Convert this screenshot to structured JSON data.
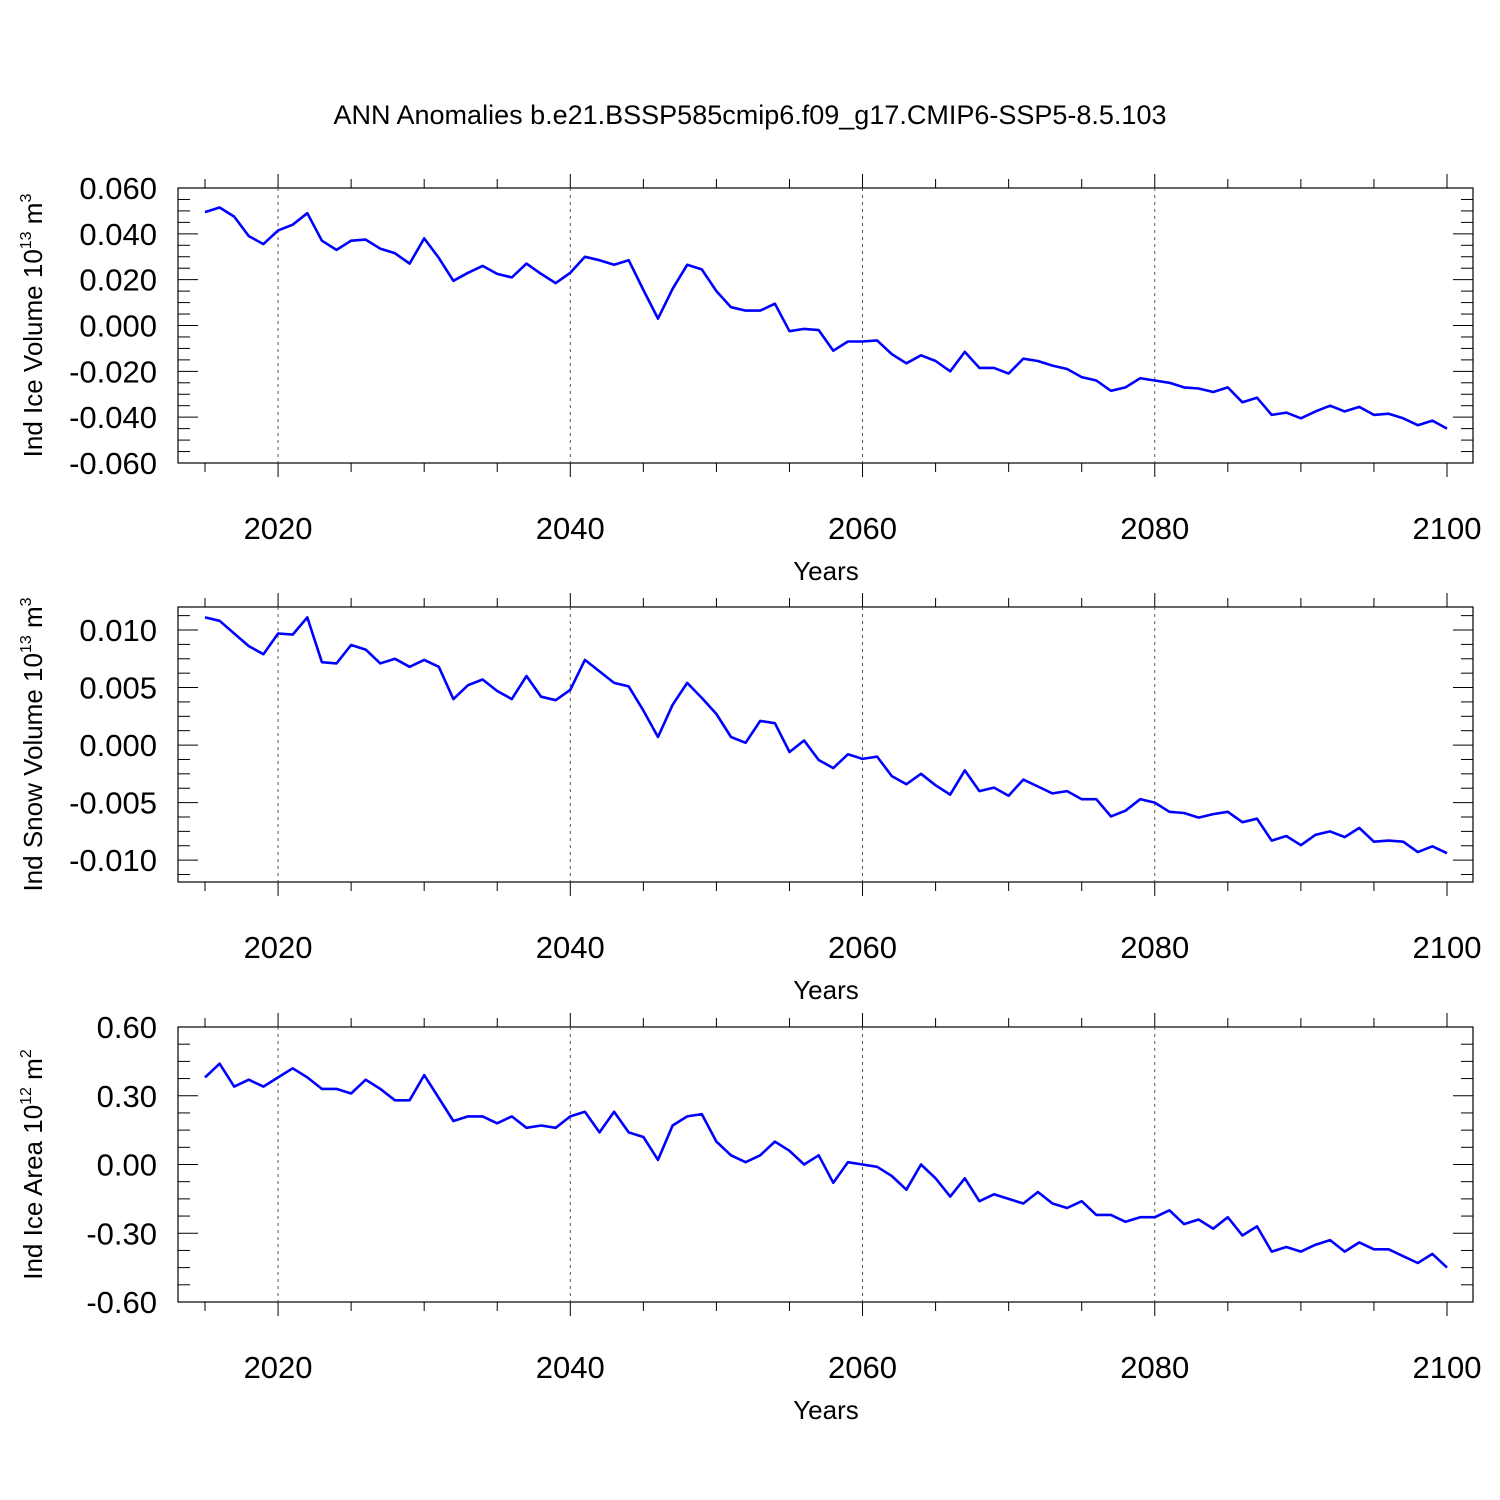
{
  "title": "ANN Anomalies b.e21.BSSP585cmip6.f09_g17.CMIP6-SSP5-8.5.103",
  "line_color": "#0000ff",
  "chart_data": [
    {
      "type": "line",
      "ylabel": "Ind Ice Volume 10",
      "ylabel_exp": "13",
      "ylabel_unit": " m",
      "ylabel_unit_exp": "3",
      "xlabel": "Years",
      "xlim": [
        2015,
        2100
      ],
      "ylim": [
        -0.06,
        0.06
      ],
      "xticks": [
        2020,
        2040,
        2060,
        2080,
        2100
      ],
      "yticks": [
        0.06,
        0.04,
        0.02,
        0.0,
        -0.02,
        -0.04,
        -0.06
      ],
      "ytick_labels": [
        "0.060",
        "0.040",
        "0.020",
        "0.000",
        "-0.020",
        "-0.040",
        "-0.060"
      ],
      "series": [
        {
          "x": [
            2015,
            2016,
            2017,
            2018,
            2019,
            2020,
            2021,
            2022,
            2023,
            2024,
            2025,
            2026,
            2027,
            2028,
            2029,
            2030,
            2031,
            2032,
            2033,
            2034,
            2035,
            2036,
            2037,
            2038,
            2039,
            2040,
            2041,
            2042,
            2043,
            2044,
            2045,
            2046,
            2047,
            2048,
            2049,
            2050,
            2051,
            2052,
            2053,
            2054,
            2055,
            2056,
            2057,
            2058,
            2059,
            2060,
            2061,
            2062,
            2063,
            2064,
            2065,
            2066,
            2067,
            2068,
            2069,
            2070,
            2071,
            2072,
            2073,
            2074,
            2075,
            2076,
            2077,
            2078,
            2079,
            2080,
            2081,
            2082,
            2083,
            2084,
            2085,
            2086,
            2087,
            2088,
            2089,
            2090,
            2091,
            2092,
            2093,
            2094,
            2095,
            2096,
            2097,
            2098,
            2099,
            2100
          ],
          "values": [
            0.0495,
            0.0515,
            0.0475,
            0.039,
            0.0355,
            0.0415,
            0.044,
            0.049,
            0.037,
            0.033,
            0.037,
            0.0375,
            0.0335,
            0.0315,
            0.027,
            0.038,
            0.0295,
            0.0195,
            0.023,
            0.026,
            0.0225,
            0.021,
            0.027,
            0.0225,
            0.0185,
            0.023,
            0.03,
            0.0285,
            0.0265,
            0.0285,
            0.0155,
            0.003,
            0.016,
            0.0265,
            0.0245,
            0.015,
            0.008,
            0.0065,
            0.0065,
            0.0095,
            -0.0025,
            -0.0015,
            -0.002,
            -0.011,
            -0.007,
            -0.007,
            -0.0065,
            -0.0125,
            -0.0165,
            -0.013,
            -0.0155,
            -0.02,
            -0.0115,
            -0.0185,
            -0.0185,
            -0.021,
            -0.0145,
            -0.0155,
            -0.0175,
            -0.019,
            -0.0225,
            -0.024,
            -0.0285,
            -0.027,
            -0.023,
            -0.024,
            -0.025,
            -0.027,
            -0.0275,
            -0.029,
            -0.027,
            -0.0335,
            -0.0315,
            -0.039,
            -0.038,
            -0.0405,
            -0.0375,
            -0.035,
            -0.0375,
            -0.0355,
            -0.039,
            -0.0385,
            -0.0405,
            -0.0435,
            -0.0415,
            -0.045
          ]
        }
      ]
    },
    {
      "type": "line",
      "ylabel": "Ind Snow Volume 10",
      "ylabel_exp": "13",
      "ylabel_unit": " m",
      "ylabel_unit_exp": "3",
      "xlabel": "Years",
      "xlim": [
        2015,
        2100
      ],
      "ylim": [
        -0.0119,
        0.012
      ],
      "xticks": [
        2020,
        2040,
        2060,
        2080,
        2100
      ],
      "yticks": [
        0.01,
        0.005,
        0.0,
        -0.005,
        -0.01
      ],
      "ytick_labels": [
        "0.010",
        "0.005",
        "0.000",
        "-0.005",
        "-0.010"
      ],
      "series": [
        {
          "x": [
            2015,
            2016,
            2017,
            2018,
            2019,
            2020,
            2021,
            2022,
            2023,
            2024,
            2025,
            2026,
            2027,
            2028,
            2029,
            2030,
            2031,
            2032,
            2033,
            2034,
            2035,
            2036,
            2037,
            2038,
            2039,
            2040,
            2041,
            2042,
            2043,
            2044,
            2045,
            2046,
            2047,
            2048,
            2049,
            2050,
            2051,
            2052,
            2053,
            2054,
            2055,
            2056,
            2057,
            2058,
            2059,
            2060,
            2061,
            2062,
            2063,
            2064,
            2065,
            2066,
            2067,
            2068,
            2069,
            2070,
            2071,
            2072,
            2073,
            2074,
            2075,
            2076,
            2077,
            2078,
            2079,
            2080,
            2081,
            2082,
            2083,
            2084,
            2085,
            2086,
            2087,
            2088,
            2089,
            2090,
            2091,
            2092,
            2093,
            2094,
            2095,
            2096,
            2097,
            2098,
            2099,
            2100
          ],
          "values": [
            0.0111,
            0.0108,
            0.0097,
            0.0086,
            0.0079,
            0.0097,
            0.0096,
            0.0111,
            0.0072,
            0.0071,
            0.0087,
            0.0083,
            0.0071,
            0.0075,
            0.0068,
            0.0074,
            0.0068,
            0.004,
            0.0052,
            0.0057,
            0.0047,
            0.004,
            0.006,
            0.0042,
            0.0039,
            0.0048,
            0.0074,
            0.0064,
            0.0054,
            0.0051,
            0.003,
            0.0007,
            0.0035,
            0.0054,
            0.0041,
            0.0027,
            0.0007,
            0.0002,
            0.0021,
            0.0019,
            -0.0006,
            0.0004,
            -0.0013,
            -0.002,
            -0.0008,
            -0.0012,
            -0.001,
            -0.0027,
            -0.0034,
            -0.0025,
            -0.0035,
            -0.0043,
            -0.0022,
            -0.004,
            -0.0037,
            -0.0044,
            -0.003,
            -0.0036,
            -0.0042,
            -0.004,
            -0.0047,
            -0.0047,
            -0.0062,
            -0.0057,
            -0.0047,
            -0.005,
            -0.0058,
            -0.0059,
            -0.0063,
            -0.006,
            -0.0058,
            -0.0067,
            -0.0064,
            -0.0083,
            -0.0079,
            -0.0087,
            -0.0078,
            -0.0075,
            -0.008,
            -0.0072,
            -0.0084,
            -0.0083,
            -0.0084,
            -0.0093,
            -0.0088,
            -0.0094
          ]
        }
      ]
    },
    {
      "type": "line",
      "ylabel": "Ind Ice Area 10",
      "ylabel_exp": "12",
      "ylabel_unit": " m",
      "ylabel_unit_exp": "2",
      "xlabel": "Years",
      "xlim": [
        2015,
        2100
      ],
      "ylim": [
        -0.6,
        0.6
      ],
      "xticks": [
        2020,
        2040,
        2060,
        2080,
        2100
      ],
      "yticks": [
        0.6,
        0.3,
        0.0,
        -0.3,
        -0.6
      ],
      "ytick_labels": [
        "0.60",
        "0.30",
        "0.00",
        "-0.30",
        "-0.60"
      ],
      "series": [
        {
          "x": [
            2015,
            2016,
            2017,
            2018,
            2019,
            2020,
            2021,
            2022,
            2023,
            2024,
            2025,
            2026,
            2027,
            2028,
            2029,
            2030,
            2031,
            2032,
            2033,
            2034,
            2035,
            2036,
            2037,
            2038,
            2039,
            2040,
            2041,
            2042,
            2043,
            2044,
            2045,
            2046,
            2047,
            2048,
            2049,
            2050,
            2051,
            2052,
            2053,
            2054,
            2055,
            2056,
            2057,
            2058,
            2059,
            2060,
            2061,
            2062,
            2063,
            2064,
            2065,
            2066,
            2067,
            2068,
            2069,
            2070,
            2071,
            2072,
            2073,
            2074,
            2075,
            2076,
            2077,
            2078,
            2079,
            2080,
            2081,
            2082,
            2083,
            2084,
            2085,
            2086,
            2087,
            2088,
            2089,
            2090,
            2091,
            2092,
            2093,
            2094,
            2095,
            2096,
            2097,
            2098,
            2099,
            2100
          ],
          "values": [
            0.38,
            0.44,
            0.34,
            0.37,
            0.34,
            0.38,
            0.42,
            0.38,
            0.33,
            0.33,
            0.31,
            0.37,
            0.33,
            0.28,
            0.28,
            0.39,
            0.29,
            0.19,
            0.21,
            0.21,
            0.18,
            0.21,
            0.16,
            0.17,
            0.16,
            0.21,
            0.23,
            0.14,
            0.23,
            0.14,
            0.12,
            0.02,
            0.17,
            0.21,
            0.22,
            0.1,
            0.04,
            0.01,
            0.04,
            0.1,
            0.06,
            0.0,
            0.04,
            -0.08,
            0.01,
            0.0,
            -0.01,
            -0.05,
            -0.11,
            0.0,
            -0.06,
            -0.14,
            -0.06,
            -0.16,
            -0.13,
            -0.15,
            -0.17,
            -0.12,
            -0.17,
            -0.19,
            -0.16,
            -0.22,
            -0.22,
            -0.25,
            -0.23,
            -0.23,
            -0.2,
            -0.26,
            -0.24,
            -0.28,
            -0.23,
            -0.31,
            -0.27,
            -0.38,
            -0.36,
            -0.38,
            -0.35,
            -0.33,
            -0.38,
            -0.34,
            -0.37,
            -0.37,
            -0.4,
            -0.43,
            -0.39,
            -0.45
          ]
        }
      ]
    }
  ]
}
